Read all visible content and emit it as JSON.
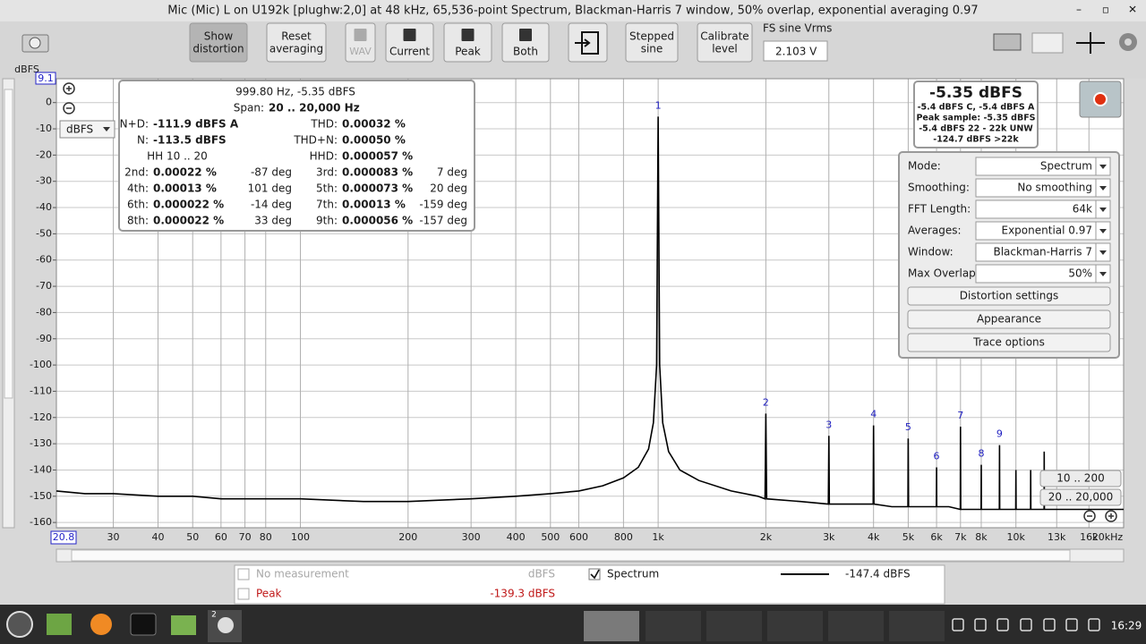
{
  "window": {
    "title": "Mic (Mic) L on U192k [plughw:2,0] at 48 kHz, 65,536-point Spectrum, Blackman-Harris 7 window, 50% overlap, exponential averaging 0.97"
  },
  "toolbar": {
    "buttons": [
      {
        "lines": [
          "Show",
          "distortion"
        ]
      },
      {
        "lines": [
          "Reset",
          "averaging"
        ]
      },
      {
        "lines": [
          "WAV"
        ]
      },
      {
        "lines": [
          "Current"
        ]
      },
      {
        "lines": [
          "Peak"
        ]
      },
      {
        "lines": [
          "Both"
        ]
      },
      {
        "lines": [
          "Stepped",
          "sine"
        ]
      },
      {
        "lines": [
          "Calibrate",
          "level"
        ]
      }
    ],
    "fs_sine_label": "FS sine Vrms",
    "fs_sine_value": "2.103 V"
  },
  "chart_data": {
    "type": "line",
    "y_label": "dBFS",
    "xscale": "log",
    "xlim": [
      20.8,
      20000
    ],
    "ylim": [
      -162,
      9.1
    ],
    "grid": true,
    "xticks": [
      30,
      40,
      50,
      60,
      70,
      80,
      100,
      200,
      300,
      400,
      500,
      600,
      800,
      {
        "value": 1000,
        "label": "1k"
      },
      {
        "value": 2000,
        "label": "2k"
      },
      {
        "value": 3000,
        "label": "3k"
      },
      {
        "value": 4000,
        "label": "4k"
      },
      {
        "value": 5000,
        "label": "5k"
      },
      {
        "value": 6000,
        "label": "6k"
      },
      {
        "value": 7000,
        "label": "7k"
      },
      {
        "value": 8000,
        "label": "8k"
      },
      {
        "value": 10000,
        "label": "10k"
      },
      {
        "value": 13000,
        "label": "13k"
      },
      {
        "value": 16000,
        "label": "16k"
      },
      {
        "value": 20000,
        "label": "20kHz"
      }
    ],
    "yticks": [
      0,
      -10,
      -20,
      -30,
      -40,
      -50,
      -60,
      -70,
      -80,
      -90,
      -100,
      -110,
      -120,
      -130,
      -140,
      -150,
      -160
    ],
    "series": [
      {
        "name": "Spectrum",
        "color": "#000000",
        "x": [
          20.8,
          25,
          30,
          40,
          50,
          60,
          80,
          100,
          150,
          200,
          300,
          400,
          500,
          600,
          700,
          800,
          880,
          940,
          970,
          990,
          1000,
          1010,
          1030,
          1070,
          1150,
          1300,
          1600,
          1900,
          1990,
          2000,
          2010,
          2500,
          2990,
          3000,
          3010,
          3500,
          3990,
          4000,
          4010,
          4500,
          4990,
          5000,
          5010,
          5500,
          5990,
          6000,
          6010,
          6500,
          6990,
          7000,
          7010,
          7500,
          7990,
          8000,
          8010,
          8500,
          8990,
          9000,
          9010,
          9500,
          9990,
          10000,
          10010,
          10990,
          11000,
          11010,
          11990,
          12000,
          12010,
          14000,
          17000,
          20000
        ],
        "values": [
          -148,
          -149,
          -149,
          -150,
          -150,
          -151,
          -151,
          -151,
          -152,
          -152,
          -151,
          -150,
          -149,
          -148,
          -146,
          -143,
          -139,
          -132,
          -122,
          -100,
          -5.35,
          -100,
          -122,
          -133,
          -140,
          -144,
          -148,
          -150,
          -151,
          -118.5,
          -151,
          -152,
          -153,
          -127,
          -153,
          -153,
          -153,
          -123,
          -153,
          -154,
          -154,
          -128,
          -154,
          -154,
          -154,
          -139,
          -154,
          -154,
          -155,
          -123.5,
          -155,
          -155,
          -155,
          -138,
          -155,
          -155,
          -155,
          -130.5,
          -155,
          -155,
          -155,
          -140,
          -155,
          -155,
          -140,
          -155,
          -155,
          -133,
          -155,
          -155,
          -155,
          -155
        ]
      }
    ],
    "harmonics": {
      "labels": [
        1,
        2,
        3,
        4,
        5,
        6,
        7,
        8,
        9
      ],
      "x": [
        1000,
        2000,
        3000,
        4000,
        5000,
        6000,
        7000,
        8000,
        9000
      ],
      "values": [
        -5.35,
        -118.5,
        -127,
        -123,
        -128,
        -139,
        -123.5,
        -138,
        -130.5
      ]
    }
  },
  "unit_selector": "dBFS",
  "range_buttons": [
    "10 .. 200",
    "20 .. 20,000"
  ],
  "info_panel": {
    "header": "999.80 Hz, -5.35 dBFS",
    "span_label": "Span:",
    "span": "20 .. 20,000 Hz",
    "left": [
      [
        "N+D:",
        "-111.9 dBFS A"
      ],
      [
        "N:",
        "-113.5 dBFS"
      ],
      [
        "HH 10 .. 20"
      ]
    ],
    "right": [
      [
        "THD:",
        "0.00032 %"
      ],
      [
        "THD+N:",
        "0.00050 %"
      ],
      [
        "HHD:",
        "0.000057 %"
      ]
    ],
    "harmonics": [
      [
        "2nd:",
        "0.00022 %",
        "-87 deg"
      ],
      [
        "3rd:",
        "0.000083 %",
        "7 deg"
      ],
      [
        "4th:",
        "0.00013 %",
        "101 deg"
      ],
      [
        "5th:",
        "0.000073 %",
        "20 deg"
      ],
      [
        "6th:",
        "0.000022 %",
        "-14 deg"
      ],
      [
        "7th:",
        "0.00013 %",
        "-159 deg"
      ],
      [
        "8th:",
        "0.000022 %",
        "33 deg"
      ],
      [
        "9th:",
        "0.000056 %",
        "-157 deg"
      ]
    ]
  },
  "level_panel": {
    "main": "-5.35 dBFS",
    "lines": [
      "-5.4 dBFS C, -5.4 dBFS A",
      "Peak sample: -5.35 dBFS",
      "-5.4 dBFS 22 - 22k UNW",
      "-124.7 dBFS >22k"
    ]
  },
  "settings_panel": {
    "fields": [
      {
        "label": "Mode:",
        "value": "Spectrum"
      },
      {
        "label": "Smoothing:",
        "value": "No  smoothing"
      },
      {
        "label": "FFT Length:",
        "value": "64k"
      },
      {
        "label": "Averages:",
        "value": "Exponential 0.97"
      },
      {
        "label": "Window:",
        "value": "Blackman-Harris 7"
      },
      {
        "label": "Max Overlap:",
        "value": "50%"
      }
    ],
    "buttons": [
      "Distortion settings",
      "Appearance",
      "Trace options"
    ]
  },
  "legend": {
    "left": [
      {
        "name": "No measurement",
        "value": "dBFS"
      },
      {
        "name": "Peak",
        "value": "-139.3 dBFS"
      }
    ],
    "right_value": "-147.4 dBFS"
  },
  "taskbar": {
    "badge": "2",
    "clock": "16:29"
  }
}
